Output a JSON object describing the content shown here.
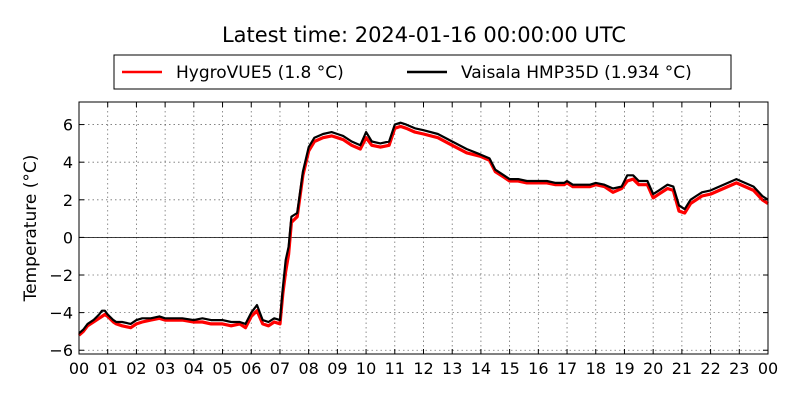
{
  "chart_data": {
    "type": "line",
    "title": "Latest time: 2024-01-16 00:00:00 UTC",
    "xlabel": "",
    "ylabel": "Temperature (°C)",
    "x_unit": "hour",
    "xlim": [
      0,
      24
    ],
    "ylim": [
      -6.2,
      7.2
    ],
    "x_ticks": [
      0,
      1,
      2,
      3,
      4,
      5,
      6,
      7,
      8,
      9,
      10,
      11,
      12,
      13,
      14,
      15,
      16,
      17,
      18,
      19,
      20,
      21,
      22,
      23,
      24
    ],
    "x_tick_labels": [
      "00",
      "01",
      "02",
      "03",
      "04",
      "05",
      "06",
      "07",
      "08",
      "09",
      "10",
      "11",
      "12",
      "13",
      "14",
      "15",
      "16",
      "17",
      "18",
      "19",
      "20",
      "21",
      "22",
      "23",
      "00"
    ],
    "y_ticks": [
      -6,
      -4,
      -2,
      0,
      2,
      4,
      6
    ],
    "y_tick_labels": [
      "−6",
      "−4",
      "−2",
      "0",
      "2",
      "4",
      "6"
    ],
    "grid": true,
    "zero_line": true,
    "legend_position": "top",
    "series": [
      {
        "name": "HygroVUE5 (1.8 °C)",
        "color": "#ff0000",
        "x": [
          0,
          0.15,
          0.3,
          0.5,
          0.7,
          0.8,
          0.9,
          1.0,
          1.2,
          1.3,
          1.5,
          1.8,
          2.0,
          2.2,
          2.5,
          2.8,
          3.0,
          3.3,
          3.6,
          4.0,
          4.3,
          4.6,
          5.0,
          5.3,
          5.6,
          5.8,
          6.0,
          6.2,
          6.4,
          6.6,
          6.8,
          7.0,
          7.1,
          7.2,
          7.3,
          7.4,
          7.6,
          7.8,
          8.0,
          8.2,
          8.5,
          8.8,
          9.0,
          9.2,
          9.5,
          9.8,
          10.0,
          10.2,
          10.5,
          10.8,
          11.0,
          11.2,
          11.4,
          11.7,
          12.0,
          12.5,
          13.0,
          13.5,
          14.0,
          14.3,
          14.5,
          14.8,
          15.0,
          15.3,
          15.6,
          16.0,
          16.3,
          16.6,
          16.9,
          17.0,
          17.2,
          17.5,
          17.8,
          18.0,
          18.3,
          18.6,
          18.9,
          19.1,
          19.3,
          19.5,
          19.8,
          20.0,
          20.2,
          20.5,
          20.7,
          20.9,
          21.1,
          21.3,
          21.5,
          21.7,
          22.0,
          22.3,
          22.6,
          22.9,
          23.2,
          23.5,
          23.8,
          24.0
        ],
        "y": [
          -5.2,
          -5.0,
          -4.7,
          -4.5,
          -4.3,
          -4.2,
          -4.1,
          -4.2,
          -4.5,
          -4.6,
          -4.7,
          -4.8,
          -4.6,
          -4.5,
          -4.4,
          -4.3,
          -4.4,
          -4.4,
          -4.4,
          -4.5,
          -4.5,
          -4.6,
          -4.6,
          -4.7,
          -4.6,
          -4.8,
          -4.2,
          -3.9,
          -4.6,
          -4.7,
          -4.5,
          -4.6,
          -3.0,
          -1.8,
          -0.9,
          0.8,
          1.1,
          3.3,
          4.6,
          5.1,
          5.3,
          5.4,
          5.3,
          5.2,
          4.9,
          4.7,
          5.3,
          4.9,
          4.8,
          4.9,
          5.8,
          5.9,
          5.8,
          5.6,
          5.5,
          5.3,
          4.9,
          4.5,
          4.3,
          4.1,
          3.5,
          3.2,
          3.0,
          3.0,
          2.9,
          2.9,
          2.9,
          2.8,
          2.8,
          2.9,
          2.7,
          2.7,
          2.7,
          2.8,
          2.7,
          2.4,
          2.6,
          3.0,
          3.1,
          2.8,
          2.8,
          2.1,
          2.3,
          2.6,
          2.5,
          1.4,
          1.3,
          1.8,
          2.0,
          2.2,
          2.3,
          2.5,
          2.7,
          2.9,
          2.7,
          2.5,
          2.0,
          1.8
        ]
      },
      {
        "name": "Vaisala HMP35D (1.934 °C)",
        "color": "#000000",
        "x": [
          0,
          0.15,
          0.3,
          0.5,
          0.7,
          0.8,
          0.9,
          1.0,
          1.2,
          1.3,
          1.5,
          1.8,
          2.0,
          2.2,
          2.5,
          2.8,
          3.0,
          3.3,
          3.6,
          4.0,
          4.3,
          4.6,
          5.0,
          5.3,
          5.6,
          5.8,
          6.0,
          6.2,
          6.4,
          6.6,
          6.8,
          7.0,
          7.1,
          7.2,
          7.3,
          7.4,
          7.6,
          7.8,
          8.0,
          8.2,
          8.5,
          8.8,
          9.0,
          9.2,
          9.5,
          9.8,
          10.0,
          10.2,
          10.5,
          10.8,
          11.0,
          11.2,
          11.4,
          11.7,
          12.0,
          12.5,
          13.0,
          13.5,
          14.0,
          14.3,
          14.5,
          14.8,
          15.0,
          15.3,
          15.6,
          16.0,
          16.3,
          16.6,
          16.9,
          17.0,
          17.2,
          17.5,
          17.8,
          18.0,
          18.3,
          18.6,
          18.9,
          19.1,
          19.3,
          19.5,
          19.8,
          20.0,
          20.2,
          20.5,
          20.7,
          20.9,
          21.1,
          21.3,
          21.5,
          21.7,
          22.0,
          22.3,
          22.6,
          22.9,
          23.2,
          23.5,
          23.8,
          24.0
        ],
        "y": [
          -5.1,
          -4.9,
          -4.6,
          -4.4,
          -4.1,
          -3.9,
          -3.9,
          -4.1,
          -4.4,
          -4.5,
          -4.5,
          -4.6,
          -4.4,
          -4.3,
          -4.3,
          -4.2,
          -4.3,
          -4.3,
          -4.3,
          -4.4,
          -4.3,
          -4.4,
          -4.4,
          -4.5,
          -4.5,
          -4.6,
          -4.0,
          -3.6,
          -4.4,
          -4.5,
          -4.3,
          -4.4,
          -2.7,
          -1.2,
          -0.5,
          1.1,
          1.3,
          3.5,
          4.8,
          5.3,
          5.5,
          5.6,
          5.5,
          5.4,
          5.1,
          4.9,
          5.6,
          5.1,
          5.0,
          5.1,
          6.0,
          6.1,
          6.0,
          5.8,
          5.7,
          5.5,
          5.1,
          4.7,
          4.4,
          4.2,
          3.6,
          3.3,
          3.1,
          3.1,
          3.0,
          3.0,
          3.0,
          2.9,
          2.9,
          3.0,
          2.8,
          2.8,
          2.8,
          2.9,
          2.8,
          2.6,
          2.7,
          3.3,
          3.3,
          3.0,
          3.0,
          2.3,
          2.5,
          2.8,
          2.7,
          1.7,
          1.5,
          2.0,
          2.2,
          2.4,
          2.5,
          2.7,
          2.9,
          3.1,
          2.9,
          2.7,
          2.2,
          2.0
        ]
      }
    ]
  }
}
